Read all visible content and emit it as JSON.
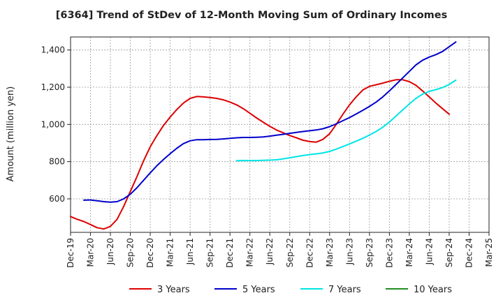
{
  "chart_data": {
    "type": "line",
    "title": "[6364]  Trend of StDev of 12-Month Moving Sum of Ordinary Incomes",
    "xlabel": "",
    "ylabel": "Amount (million yen)",
    "x_ticks": [
      "Dec-19",
      "Mar-20",
      "Jun-20",
      "Sep-20",
      "Dec-20",
      "Mar-21",
      "Jun-21",
      "Sep-21",
      "Dec-21",
      "Mar-22",
      "Jun-22",
      "Sep-22",
      "Dec-22",
      "Mar-23",
      "Jun-23",
      "Sep-23",
      "Dec-23",
      "Mar-24",
      "Jun-24",
      "Sep-24",
      "Dec-24",
      "Mar-25"
    ],
    "y_ticks": [
      600,
      800,
      1000,
      1200,
      1400
    ],
    "ylim": [
      420,
      1470
    ],
    "grid": true,
    "legend_position": "bottom",
    "series": [
      {
        "name": "3 Years",
        "color": "#dd0000",
        "points": [
          [
            0,
            505
          ],
          [
            1,
            490
          ],
          [
            2,
            478
          ],
          [
            3,
            462
          ],
          [
            4,
            445
          ],
          [
            5,
            438
          ],
          [
            6,
            452
          ],
          [
            7,
            490
          ],
          [
            8,
            560
          ],
          [
            9,
            640
          ],
          [
            10,
            720
          ],
          [
            11,
            805
          ],
          [
            12,
            880
          ],
          [
            13,
            940
          ],
          [
            14,
            995
          ],
          [
            15,
            1040
          ],
          [
            16,
            1080
          ],
          [
            17,
            1115
          ],
          [
            18,
            1140
          ],
          [
            19,
            1150
          ],
          [
            20,
            1148
          ],
          [
            21,
            1145
          ],
          [
            22,
            1140
          ],
          [
            23,
            1132
          ],
          [
            24,
            1120
          ],
          [
            25,
            1105
          ],
          [
            26,
            1085
          ],
          [
            27,
            1060
          ],
          [
            28,
            1035
          ],
          [
            29,
            1012
          ],
          [
            30,
            990
          ],
          [
            31,
            970
          ],
          [
            32,
            955
          ],
          [
            33,
            940
          ],
          [
            34,
            928
          ],
          [
            35,
            915
          ],
          [
            36,
            908
          ],
          [
            37,
            905
          ],
          [
            38,
            920
          ],
          [
            39,
            950
          ],
          [
            40,
            1000
          ],
          [
            41,
            1055
          ],
          [
            42,
            1105
          ],
          [
            43,
            1148
          ],
          [
            44,
            1185
          ],
          [
            45,
            1205
          ],
          [
            46,
            1213
          ],
          [
            47,
            1222
          ],
          [
            48,
            1232
          ],
          [
            49,
            1240
          ],
          [
            50,
            1240
          ],
          [
            51,
            1230
          ],
          [
            52,
            1210
          ],
          [
            53,
            1180
          ],
          [
            54,
            1148
          ],
          [
            55,
            1115
          ],
          [
            56,
            1085
          ],
          [
            57,
            1055
          ]
        ]
      },
      {
        "name": "5 Years",
        "color": "#0000cc",
        "points": [
          [
            2,
            593
          ],
          [
            3,
            594
          ],
          [
            4,
            590
          ],
          [
            5,
            585
          ],
          [
            6,
            582
          ],
          [
            7,
            585
          ],
          [
            8,
            600
          ],
          [
            9,
            625
          ],
          [
            10,
            660
          ],
          [
            11,
            700
          ],
          [
            12,
            740
          ],
          [
            13,
            778
          ],
          [
            14,
            812
          ],
          [
            15,
            843
          ],
          [
            16,
            872
          ],
          [
            17,
            897
          ],
          [
            18,
            912
          ],
          [
            19,
            918
          ],
          [
            20,
            918
          ],
          [
            21,
            919
          ],
          [
            22,
            920
          ],
          [
            23,
            922
          ],
          [
            24,
            925
          ],
          [
            25,
            928
          ],
          [
            26,
            930
          ],
          [
            27,
            930
          ],
          [
            28,
            931
          ],
          [
            29,
            933
          ],
          [
            30,
            937
          ],
          [
            31,
            942
          ],
          [
            32,
            947
          ],
          [
            33,
            952
          ],
          [
            34,
            957
          ],
          [
            35,
            962
          ],
          [
            36,
            966
          ],
          [
            37,
            970
          ],
          [
            38,
            977
          ],
          [
            39,
            988
          ],
          [
            40,
            1003
          ],
          [
            41,
            1020
          ],
          [
            42,
            1037
          ],
          [
            43,
            1056
          ],
          [
            44,
            1076
          ],
          [
            45,
            1097
          ],
          [
            46,
            1120
          ],
          [
            47,
            1148
          ],
          [
            48,
            1180
          ],
          [
            49,
            1215
          ],
          [
            50,
            1250
          ],
          [
            51,
            1285
          ],
          [
            52,
            1320
          ],
          [
            53,
            1345
          ],
          [
            54,
            1362
          ],
          [
            55,
            1375
          ],
          [
            56,
            1392
          ],
          [
            57,
            1418
          ],
          [
            58,
            1443
          ]
        ]
      },
      {
        "name": "7 Years",
        "color": "#00e5e5",
        "points": [
          [
            25,
            805
          ],
          [
            26,
            806
          ],
          [
            27,
            806
          ],
          [
            28,
            806
          ],
          [
            29,
            807
          ],
          [
            30,
            808
          ],
          [
            31,
            810
          ],
          [
            32,
            815
          ],
          [
            33,
            821
          ],
          [
            34,
            827
          ],
          [
            35,
            833
          ],
          [
            36,
            838
          ],
          [
            37,
            842
          ],
          [
            38,
            847
          ],
          [
            39,
            855
          ],
          [
            40,
            867
          ],
          [
            41,
            881
          ],
          [
            42,
            895
          ],
          [
            43,
            910
          ],
          [
            44,
            925
          ],
          [
            45,
            943
          ],
          [
            46,
            962
          ],
          [
            47,
            985
          ],
          [
            48,
            1013
          ],
          [
            49,
            1045
          ],
          [
            50,
            1078
          ],
          [
            51,
            1110
          ],
          [
            52,
            1140
          ],
          [
            53,
            1163
          ],
          [
            54,
            1178
          ],
          [
            55,
            1187
          ],
          [
            56,
            1198
          ],
          [
            57,
            1215
          ],
          [
            58,
            1238
          ]
        ]
      },
      {
        "name": "10 Years",
        "color": "#228b22",
        "points": []
      }
    ]
  }
}
